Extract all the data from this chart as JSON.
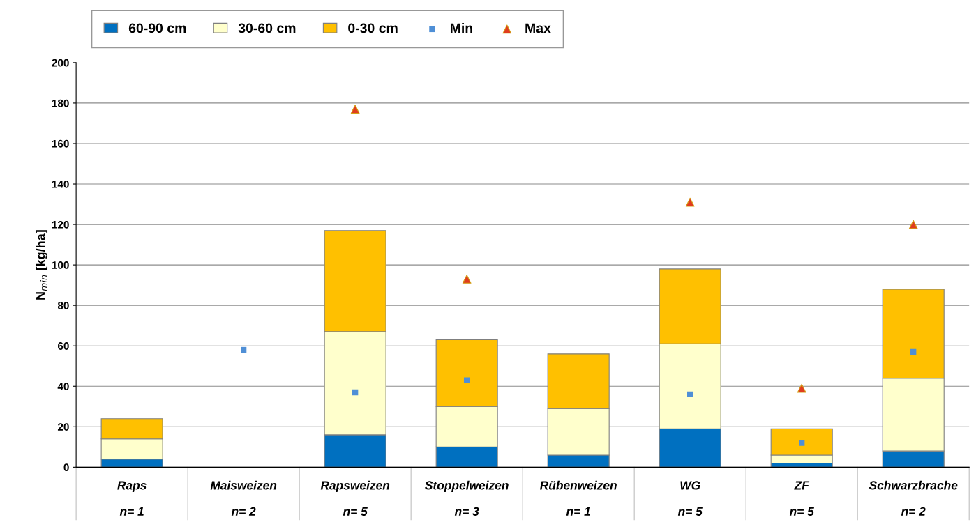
{
  "chart_data": {
    "type": "bar",
    "stacked": true,
    "ylabel": "N$_{min}$ [kg/ha]",
    "categories": [
      "Raps\n\nn= 1",
      "Maisweizen\n\nn= 2",
      "Rapsweizen\n\nn= 5",
      "Stoppelweizen\n\nn= 3",
      "Rübenweizen\n\nn= 1",
      "WG\n\nn= 5",
      "ZF\n\nn= 5",
      "Schwarzbrache\n\nn= 2"
    ],
    "series": [
      {
        "name": "60-90 cm",
        "color": "#0070c0",
        "values": [
          4,
          null,
          16,
          10,
          6,
          19,
          2,
          8
        ]
      },
      {
        "name": "30-60 cm",
        "color": "#ffffcc",
        "values": [
          10,
          null,
          51,
          20,
          23,
          42,
          4,
          36
        ]
      },
      {
        "name": "0-30 cm",
        "color": "#ffc000",
        "values": [
          10,
          null,
          50,
          33,
          27,
          37,
          13,
          44
        ]
      },
      {
        "name": "Min",
        "type": "scatter",
        "marker": "square",
        "color": "#4f8fd6",
        "values": [
          null,
          58,
          37,
          43,
          null,
          36,
          12,
          57
        ]
      },
      {
        "name": "Max",
        "type": "scatter",
        "marker": "triangle",
        "color": "#e03c1e",
        "values": [
          null,
          null,
          177,
          93,
          null,
          131,
          39,
          120
        ]
      }
    ],
    "ylim": [
      0,
      200
    ],
    "yticks": [
      0,
      20,
      40,
      60,
      80,
      100,
      120,
      140,
      160,
      180,
      200
    ],
    "grid": "y",
    "legend": "top left"
  }
}
